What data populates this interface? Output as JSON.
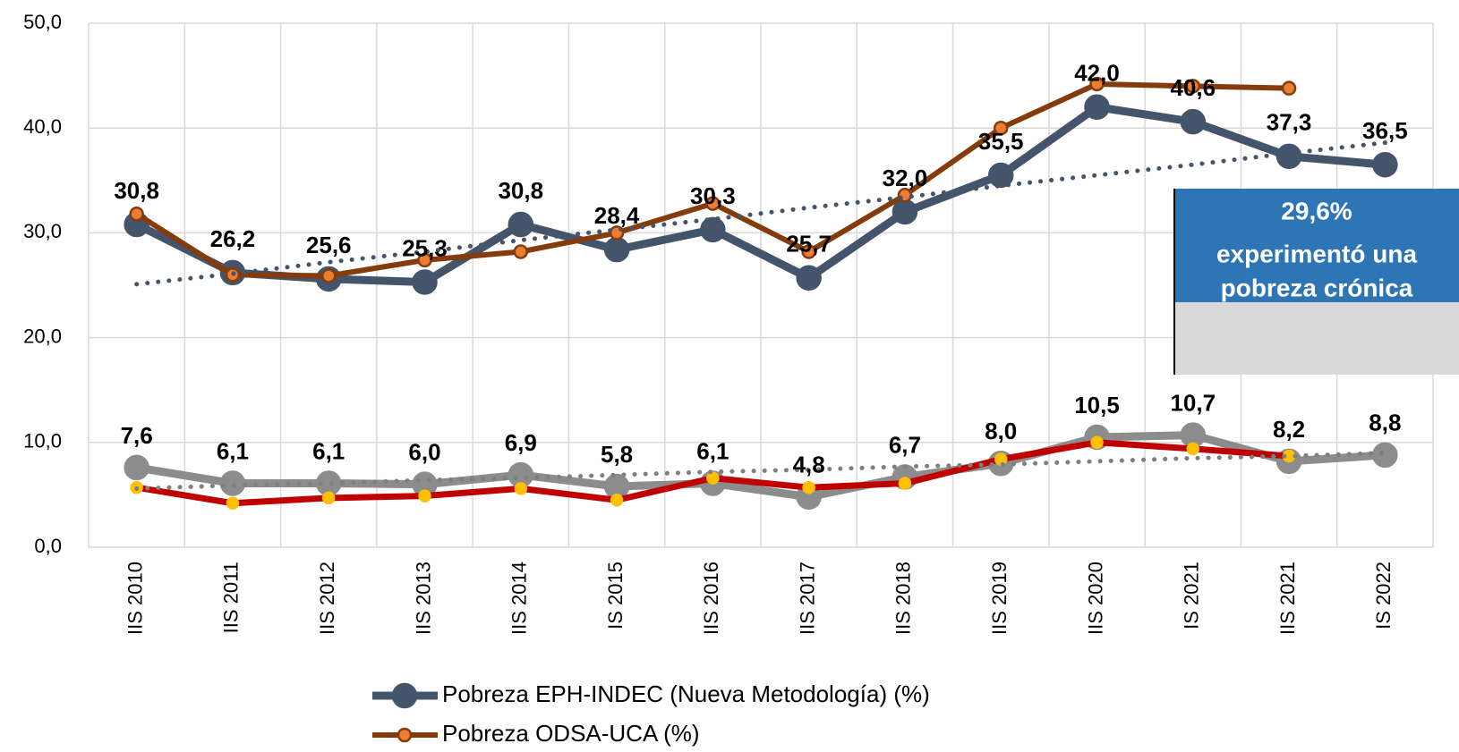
{
  "chart_data": {
    "type": "line",
    "categories": [
      "IIS 2010",
      "IIS 2011",
      "IIS 2012",
      "IIS 2013",
      "IIS 2014",
      "IS 2015",
      "IIS 2016",
      "IIS 2017",
      "IIS 2018",
      "IIS 2019",
      "IIS 2020",
      "IS 2021",
      "IIS 2021",
      "IS 2022"
    ],
    "series": [
      {
        "name": "Pobreza EPH-INDEC (Nueva Metodología) (%)",
        "color": "#44546a",
        "values": [
          30.8,
          26.2,
          25.6,
          25.3,
          30.8,
          28.4,
          30.3,
          25.7,
          32.0,
          35.5,
          42.0,
          40.6,
          37.3,
          36.5
        ],
        "value_labels": [
          "30,8",
          "26,2",
          "25,6",
          "25,3",
          "30,8",
          "28,4",
          "30,3",
          "25,7",
          "32,0",
          "35,5",
          "42,0",
          "40,6",
          "37,3",
          "36,5"
        ]
      },
      {
        "name": "Pobreza ODSA-UCA (%)",
        "color": "#843c0c",
        "values": [
          31.8,
          26.0,
          25.9,
          27.4,
          28.2,
          30.0,
          32.8,
          28.2,
          33.6,
          40.0,
          44.2,
          44.0,
          43.8,
          null
        ]
      },
      {
        "color": "#8c8c8c",
        "values": [
          7.6,
          6.1,
          6.1,
          6.0,
          6.9,
          5.8,
          6.1,
          4.8,
          6.7,
          8.0,
          10.5,
          10.7,
          8.2,
          8.8
        ],
        "value_labels": [
          "7,6",
          "6,1",
          "6,1",
          "6,0",
          "6,9",
          "5,8",
          "6,1",
          "4,8",
          "6,7",
          "8,0",
          "10,5",
          "10,7",
          "8,2",
          "8,8"
        ]
      },
      {
        "color": "#c00000",
        "values": [
          5.7,
          4.2,
          4.7,
          4.9,
          5.6,
          4.5,
          6.6,
          5.7,
          6.1,
          8.4,
          10.0,
          9.4,
          8.7,
          null
        ]
      },
      {
        "color": "#44546a",
        "dotted": true,
        "values": [
          25.1,
          26.1,
          27.2,
          28.2,
          29.3,
          30.3,
          31.3,
          32.4,
          33.4,
          34.5,
          35.5,
          36.5,
          37.6,
          38.6
        ]
      },
      {
        "color": "#7f7f7f",
        "dotted": true,
        "values": [
          5.6,
          5.9,
          6.1,
          6.4,
          6.6,
          6.9,
          7.2,
          7.4,
          7.7,
          7.9,
          8.2,
          8.5,
          8.7,
          9.0
        ]
      }
    ],
    "ylim": [
      0,
      50
    ],
    "yticks": [
      {
        "value": 0,
        "label": "0,0"
      },
      {
        "value": 10,
        "label": "10,0"
      },
      {
        "value": 20,
        "label": "20,0"
      },
      {
        "value": 30,
        "label": "30,0"
      },
      {
        "value": 40,
        "label": "40,0"
      },
      {
        "value": 50,
        "label": "50,0"
      }
    ],
    "grid": true,
    "legend": "bottom",
    "annotation": {
      "value": "29,6%",
      "lines": [
        "experimentó una",
        "pobreza crónica"
      ]
    }
  }
}
